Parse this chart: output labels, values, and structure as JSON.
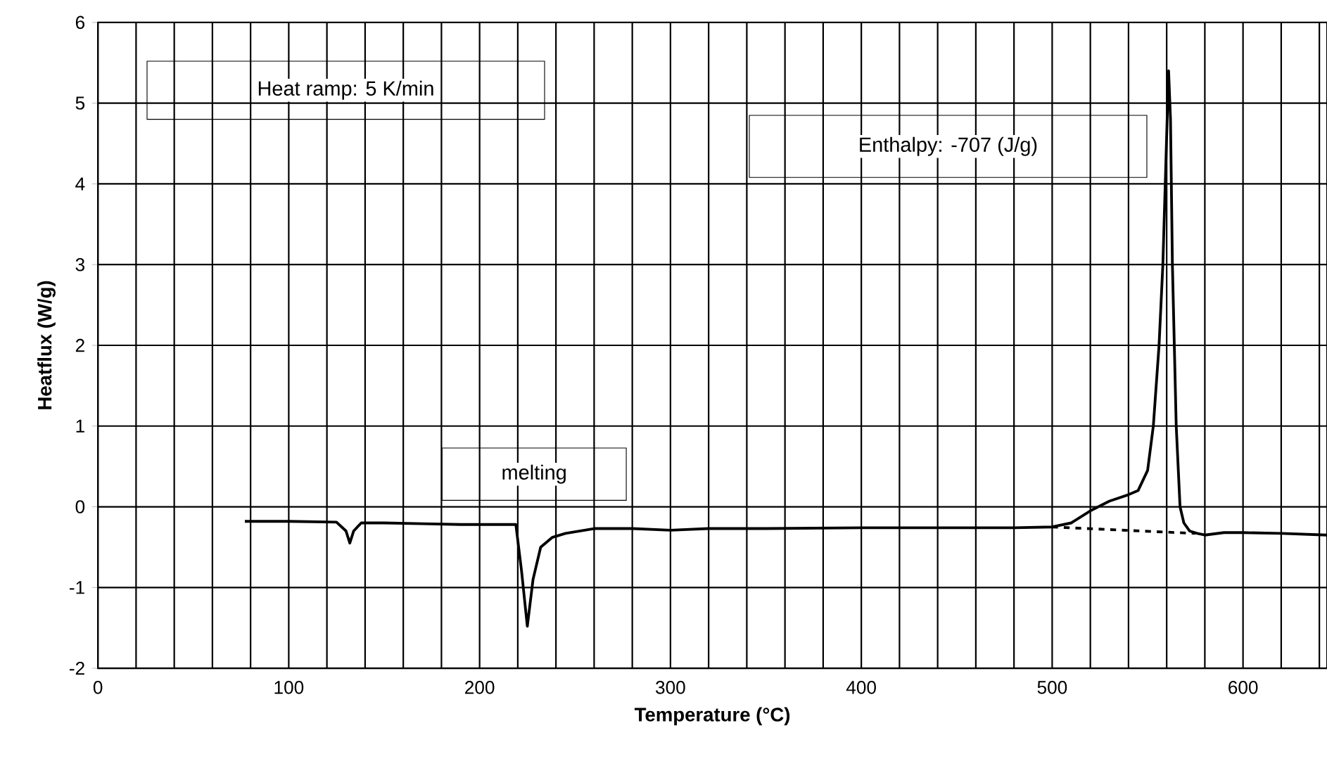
{
  "chart_data": {
    "type": "line",
    "xlabel": "Temperature (°C)",
    "ylabel": "Heatflux (W/g)",
    "annotations": [
      "Heat ramp: 5 K/min",
      "melting",
      "Enthalpy: -707 (J/g)"
    ],
    "series": [
      {
        "color": "#000000",
        "line_style": "solid",
        "x": [
          77,
          100,
          125,
          130,
          132,
          134,
          138,
          150,
          170,
          190,
          210,
          219,
          222,
          225,
          228,
          232,
          238,
          245,
          260,
          280,
          300,
          320,
          350,
          400,
          450,
          480,
          500,
          510,
          520,
          530,
          540,
          545,
          550,
          553,
          556,
          558,
          560,
          561,
          562,
          563,
          565,
          567,
          569,
          572,
          576,
          580,
          590,
          600,
          620,
          644
        ],
        "values": [
          -0.18,
          -0.18,
          -0.19,
          -0.3,
          -0.45,
          -0.3,
          -0.2,
          -0.2,
          -0.21,
          -0.22,
          -0.22,
          -0.22,
          -0.8,
          -1.48,
          -0.9,
          -0.5,
          -0.38,
          -0.33,
          -0.27,
          -0.27,
          -0.29,
          -0.27,
          -0.27,
          -0.26,
          -0.26,
          -0.26,
          -0.25,
          -0.2,
          -0.05,
          0.07,
          0.15,
          0.2,
          0.45,
          1.0,
          2.0,
          3.0,
          4.6,
          5.4,
          4.8,
          3.0,
          1.0,
          0.0,
          -0.2,
          -0.3,
          -0.33,
          -0.35,
          -0.32,
          -0.32,
          -0.33,
          -0.35
        ]
      },
      {
        "color": "#000000",
        "line_style": "dashed",
        "x": [
          500,
          575
        ],
        "values": [
          -0.25,
          -0.33
        ]
      }
    ],
    "xlim": [
      0,
      644
    ],
    "ylim": [
      -2,
      6
    ],
    "xticks": [
      0,
      {
        "value": 20,
        "label": null
      },
      {
        "value": 40,
        "label": null
      },
      {
        "value": 60,
        "label": null
      },
      {
        "value": 80,
        "label": null
      },
      100,
      {
        "value": 120,
        "label": null
      },
      {
        "value": 140,
        "label": null
      },
      {
        "value": 160,
        "label": null
      },
      {
        "value": 180,
        "label": null
      },
      200,
      {
        "value": 220,
        "label": null
      },
      {
        "value": 240,
        "label": null
      },
      {
        "value": 260,
        "label": null
      },
      {
        "value": 280,
        "label": null
      },
      300,
      {
        "value": 320,
        "label": null
      },
      {
        "value": 340,
        "label": null
      },
      {
        "value": 360,
        "label": null
      },
      {
        "value": 380,
        "label": null
      },
      400,
      {
        "value": 420,
        "label": null
      },
      {
        "value": 440,
        "label": null
      },
      {
        "value": 460,
        "label": null
      },
      {
        "value": 480,
        "label": null
      },
      500,
      {
        "value": 520,
        "label": null
      },
      {
        "value": 540,
        "label": null
      },
      {
        "value": 560,
        "label": null
      },
      {
        "value": 580,
        "label": null
      },
      600,
      {
        "value": 620,
        "label": null
      },
      {
        "value": 640,
        "label": null
      }
    ],
    "yticks": [
      -2,
      -1,
      0,
      1,
      2,
      3,
      4,
      5,
      6
    ],
    "grid": true
  }
}
